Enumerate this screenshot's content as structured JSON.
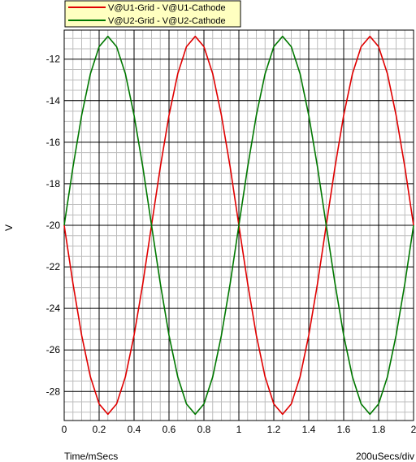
{
  "chart_data": {
    "type": "line",
    "xlabel": "Time/mSecs",
    "ylabel": "V",
    "x_scale_note": "200uSecs/div",
    "xlim": [
      0,
      2
    ],
    "ylim": [
      -29.4,
      -10.6
    ],
    "x_ticks": [
      "0",
      "0.2",
      "0.4",
      "0.6",
      "0.8",
      "1",
      "1.2",
      "1.4",
      "1.6",
      "1.8",
      "2"
    ],
    "y_ticks": [
      "-12",
      "-14",
      "-16",
      "-18",
      "-20",
      "-22",
      "-24",
      "-26",
      "-28"
    ],
    "grid": true,
    "legend_position": "top-left",
    "series": [
      {
        "name": "V@U1-Grid - V@U1-Cathode",
        "color": "#e00000",
        "x": [
          0,
          0.05,
          0.1,
          0.15,
          0.2,
          0.25,
          0.3,
          0.35,
          0.4,
          0.45,
          0.5,
          0.55,
          0.6,
          0.65,
          0.7,
          0.75,
          0.8,
          0.85,
          0.9,
          0.95,
          1.0,
          1.05,
          1.1,
          1.15,
          1.2,
          1.25,
          1.3,
          1.35,
          1.4,
          1.45,
          1.5,
          1.55,
          1.6,
          1.65,
          1.7,
          1.75,
          1.8,
          1.85,
          1.9,
          1.95,
          2.0
        ],
        "values": [
          -20.0,
          -22.8,
          -25.3,
          -27.3,
          -28.6,
          -29.1,
          -28.6,
          -27.3,
          -25.3,
          -22.8,
          -20.0,
          -17.2,
          -14.7,
          -12.7,
          -11.4,
          -10.9,
          -11.4,
          -12.7,
          -14.7,
          -17.2,
          -20.0,
          -22.8,
          -25.3,
          -27.3,
          -28.6,
          -29.1,
          -28.6,
          -27.3,
          -25.3,
          -22.8,
          -20.0,
          -17.2,
          -14.7,
          -12.7,
          -11.4,
          -10.9,
          -11.4,
          -12.7,
          -14.7,
          -17.2,
          -20.0
        ]
      },
      {
        "name": "V@U2-Grid - V@U2-Cathode",
        "color": "#007800",
        "x": [
          0,
          0.05,
          0.1,
          0.15,
          0.2,
          0.25,
          0.3,
          0.35,
          0.4,
          0.45,
          0.5,
          0.55,
          0.6,
          0.65,
          0.7,
          0.75,
          0.8,
          0.85,
          0.9,
          0.95,
          1.0,
          1.05,
          1.1,
          1.15,
          1.2,
          1.25,
          1.3,
          1.35,
          1.4,
          1.45,
          1.5,
          1.55,
          1.6,
          1.65,
          1.7,
          1.75,
          1.8,
          1.85,
          1.9,
          1.95,
          2.0
        ],
        "values": [
          -20.0,
          -17.2,
          -14.7,
          -12.7,
          -11.4,
          -10.9,
          -11.4,
          -12.7,
          -14.7,
          -17.2,
          -20.0,
          -22.8,
          -25.3,
          -27.3,
          -28.6,
          -29.1,
          -28.6,
          -27.3,
          -25.3,
          -22.8,
          -20.0,
          -17.2,
          -14.7,
          -12.7,
          -11.4,
          -10.9,
          -11.4,
          -12.7,
          -14.7,
          -17.2,
          -20.0,
          -22.8,
          -25.3,
          -27.3,
          -28.6,
          -29.1,
          -28.6,
          -27.3,
          -25.3,
          -22.8,
          -20.0
        ]
      }
    ]
  },
  "colors": {
    "grid_major": "#000000",
    "grid_minor": "#bdbdbd",
    "legend_bg": "#ffffc0"
  }
}
